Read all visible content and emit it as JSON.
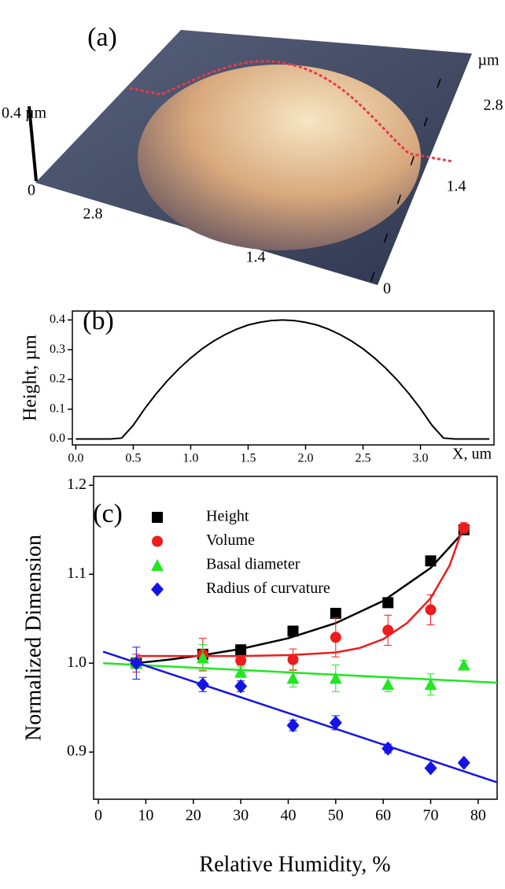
{
  "panel_a": {
    "label": "(a)",
    "z_label": "0.4 µm",
    "z_zero": "0",
    "left_ticks": [
      "2.8",
      "1.4"
    ],
    "right_unit": "µm",
    "right_ticks": [
      "2.8",
      "1.4",
      "0"
    ]
  },
  "chart_data": [
    {
      "type": "line",
      "label": "(b)",
      "ylabel": "Height, µm",
      "xlabel": "X, um",
      "x": [
        0.0,
        0.1,
        0.2,
        0.3,
        0.4,
        0.5,
        0.6,
        0.7,
        0.8,
        0.9,
        1.0,
        1.1,
        1.2,
        1.3,
        1.4,
        1.5,
        1.6,
        1.7,
        1.8,
        1.9,
        2.0,
        2.1,
        2.2,
        2.3,
        2.4,
        2.5,
        2.6,
        2.7,
        2.8,
        2.9,
        3.0,
        3.1,
        3.2,
        3.3,
        3.4,
        3.5,
        3.6
      ],
      "series": [
        {
          "color": "#000000",
          "values": [
            0,
            0,
            0,
            0,
            0.003,
            0.046,
            0.102,
            0.152,
            0.197,
            0.237,
            0.272,
            0.303,
            0.329,
            0.351,
            0.369,
            0.383,
            0.392,
            0.398,
            0.4,
            0.398,
            0.392,
            0.383,
            0.369,
            0.351,
            0.329,
            0.303,
            0.272,
            0.237,
            0.197,
            0.152,
            0.102,
            0.046,
            0.003,
            0,
            0,
            0,
            0
          ]
        }
      ],
      "xlim": [
        -0.03,
        3.64
      ],
      "ylim": [
        -0.02,
        0.43
      ],
      "xticks": [
        {
          "value": 0,
          "label": "0.0"
        },
        0.5,
        {
          "value": 1,
          "label": "1.0"
        },
        1.5,
        {
          "value": 2,
          "label": "2.0"
        },
        2.5,
        {
          "value": 3,
          "label": "3.0"
        }
      ],
      "yticks": [
        {
          "value": 0,
          "label": "0.0"
        },
        0.1,
        0.2,
        0.3,
        0.4
      ]
    },
    {
      "type": "scatter",
      "label": "(c)",
      "ylabel": "Normalized Dimension",
      "xlabel": "Relative Humidity, %",
      "legend": "upper left",
      "x": [
        8,
        22,
        30,
        41,
        50,
        61,
        70,
        77
      ],
      "series": [
        {
          "name": "Height",
          "color": "#000000",
          "marker": "square",
          "values": [
            1.0,
            1.01,
            1.015,
            1.036,
            1.056,
            1.068,
            1.115,
            1.15
          ],
          "errors": [
            0.003,
            0.003,
            0.003,
            0.003,
            0.003,
            0.003,
            0.003,
            0.004
          ],
          "fit": {
            "x": [
              8,
              15,
              22,
              30,
              40,
              50,
              60,
              70,
              77
            ],
            "values": [
              1.0,
              1.004,
              1.009,
              1.016,
              1.028,
              1.045,
              1.07,
              1.107,
              1.148
            ]
          }
        },
        {
          "name": "Volume",
          "color": "#ee1c1c",
          "marker": "circle",
          "values": [
            1.0,
            1.01,
            1.003,
            1.004,
            1.029,
            1.037,
            1.06,
            1.152
          ],
          "errors": [
            0.01,
            0.018,
            0.005,
            0.012,
            0.022,
            0.017,
            0.017,
            0.006
          ],
          "fit": {
            "x": [
              8,
              20,
              30,
              40,
              50,
              55,
              60,
              65,
              70,
              74,
              77
            ],
            "values": [
              1.008,
              1.008,
              1.008,
              1.009,
              1.012,
              1.017,
              1.027,
              1.045,
              1.073,
              1.11,
              1.155
            ]
          }
        },
        {
          "name": "Basal diameter",
          "color": "#22e622",
          "marker": "triangle",
          "values": [
            1.0,
            1.006,
            0.99,
            0.983,
            0.983,
            0.976,
            0.976,
            0.998
          ],
          "errors": [
            0.005,
            0.015,
            0.006,
            0.01,
            0.015,
            0.008,
            0.012,
            0.005
          ],
          "fit": {
            "x": [
              1,
              84
            ],
            "values": [
              1.0,
              0.978
            ]
          }
        },
        {
          "name": "Radius of curvature",
          "color": "#1414e6",
          "marker": "diamond",
          "values": [
            1.0,
            0.976,
            0.974,
            0.93,
            0.933,
            0.904,
            0.882,
            0.888
          ],
          "errors": [
            0.018,
            0.008,
            0.006,
            0.006,
            0.008,
            0.005,
            0.003,
            0.003
          ],
          "fit": {
            "x": [
              1,
              84
            ],
            "values": [
              1.013,
              0.866
            ]
          }
        }
      ],
      "xlim": [
        -1,
        84
      ],
      "ylim": [
        0.847,
        1.21
      ],
      "xticks": [
        0,
        10,
        20,
        30,
        40,
        50,
        60,
        70,
        80
      ],
      "yticks": [
        0.9,
        {
          "value": 1,
          "label": "1.0"
        },
        1.1,
        1.2
      ]
    }
  ]
}
